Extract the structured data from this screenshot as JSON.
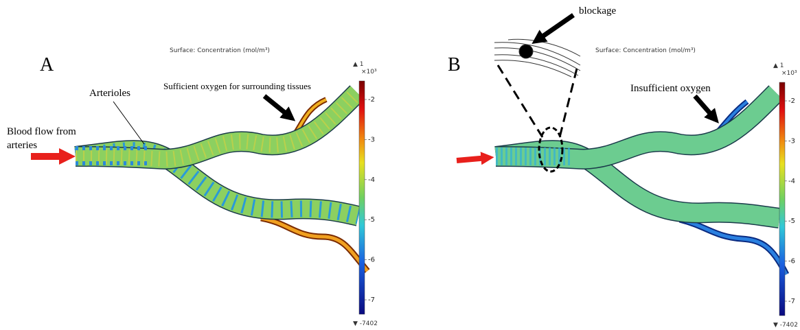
{
  "panels": [
    {
      "label": "A",
      "title": "Surface: Concentration (mol/m³)",
      "colorbar": {
        "max": "▲ 1",
        "exponent": "×10³",
        "ticks": [
          -2,
          -3,
          -4,
          -5,
          -6,
          -7
        ],
        "min": "▼ -7402"
      },
      "annotations": [
        "Arterioles",
        "Sufficient oxygen for surrounding tissues",
        "Blood flow from",
        "arteries"
      ]
    },
    {
      "label": "B",
      "title": "Surface: Concentration (mol/m³)",
      "colorbar": {
        "max": "▲ 1",
        "exponent": "×10³",
        "ticks": [
          -2,
          -3,
          -4,
          -5,
          -6,
          -7
        ],
        "min": "▼ -7402"
      },
      "annotations": [
        "blockage",
        "Insufficient oxygen"
      ]
    }
  ]
}
